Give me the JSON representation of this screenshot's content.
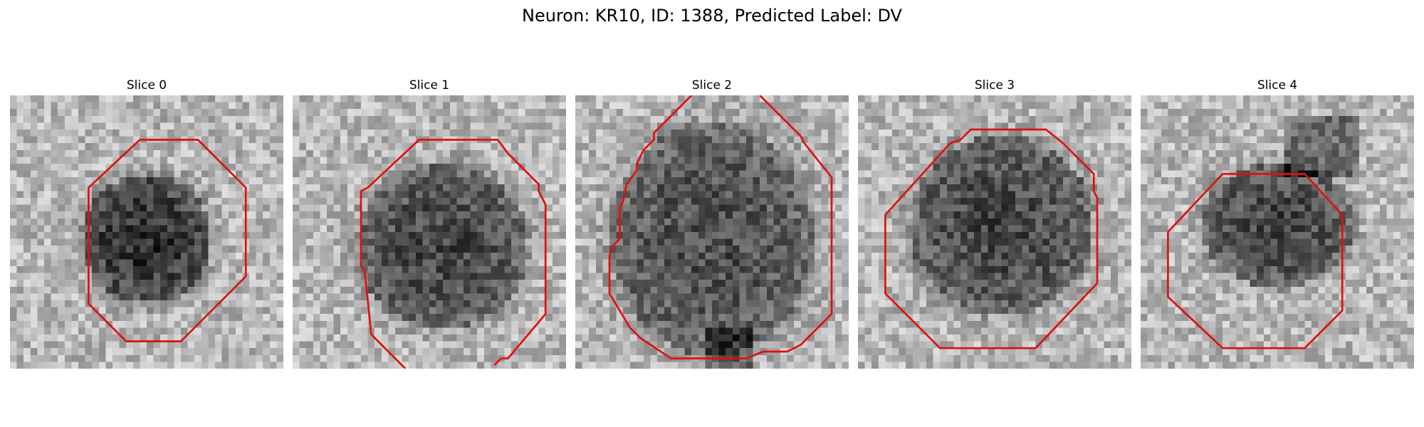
{
  "figure": {
    "title": "Neuron: KR10, ID: 1388, Predicted Label: DV",
    "outline_color": "#e01010"
  },
  "panels": [
    {
      "title": "Slice 0"
    },
    {
      "title": "Slice 1"
    },
    {
      "title": "Slice 2"
    },
    {
      "title": "Slice 3"
    },
    {
      "title": "Slice 4"
    }
  ]
}
